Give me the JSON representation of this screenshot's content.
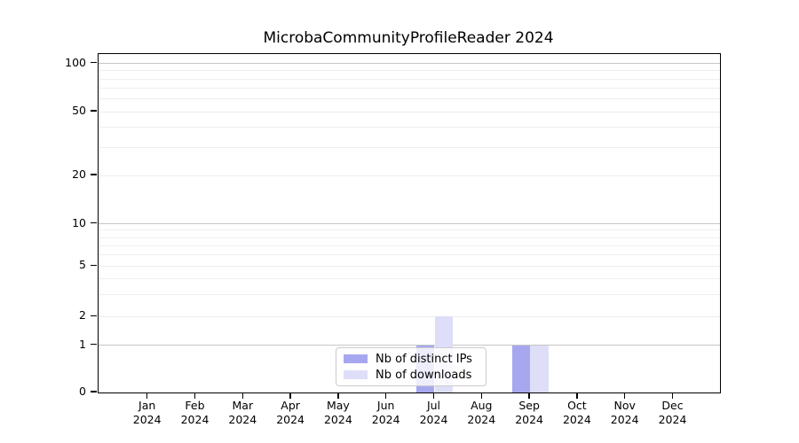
{
  "chart_data": {
    "type": "bar",
    "title": "MicrobaCommunityProfileReader 2024",
    "categories": [
      "Jan 2024",
      "Feb 2024",
      "Mar 2024",
      "Apr 2024",
      "May 2024",
      "Jun 2024",
      "Jul 2024",
      "Aug 2024",
      "Sep 2024",
      "Oct 2024",
      "Nov 2024",
      "Dec 2024"
    ],
    "series": [
      {
        "name": "Nb of distinct IPs",
        "color": "#a7a7f0",
        "values": [
          0,
          0,
          0,
          0,
          0,
          0,
          1,
          0,
          1,
          0,
          0,
          0
        ]
      },
      {
        "name": "Nb of downloads",
        "color": "#dedef8",
        "values": [
          0,
          0,
          0,
          0,
          0,
          0,
          2,
          0,
          1,
          0,
          0,
          0
        ]
      }
    ],
    "yscale": "symlog",
    "y_ticks": [
      0,
      1,
      2,
      5,
      10,
      20,
      50,
      100
    ],
    "y_minor_ticks": [
      3,
      4,
      6,
      7,
      8,
      9,
      30,
      40,
      60,
      70,
      80,
      90
    ],
    "ylim": [
      0,
      115
    ],
    "xlabel": "",
    "ylabel": "",
    "grid": "horizontal",
    "legend_position": "lower-center-inside",
    "emphasized_gridlines": [
      1,
      10,
      100
    ],
    "colors": {
      "axis": "#000000",
      "grid_minor": "#ececec",
      "grid_major": "#c6c6c6",
      "legend_border": "#cccccc"
    }
  }
}
